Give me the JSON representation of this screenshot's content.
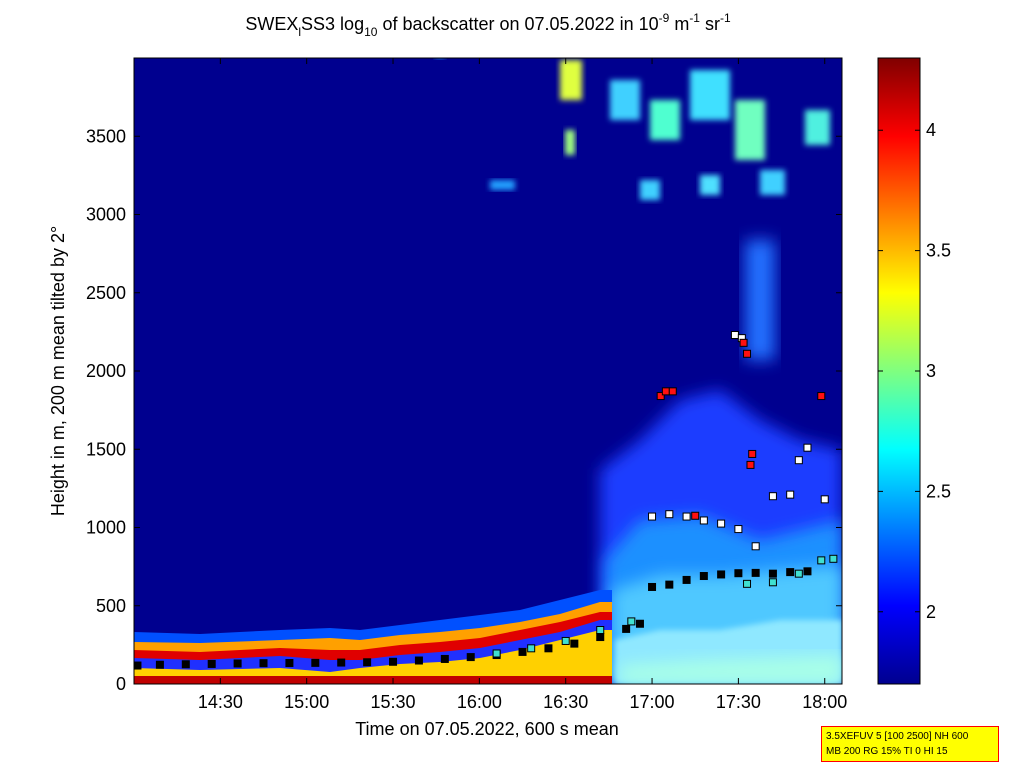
{
  "chart_data": {
    "type": "heatmap",
    "title": "SWEX_lSS3 log10 of backscatter on 07.05.2022 in 10^-9 m^-1 sr^-1",
    "title_parts": {
      "a": "SWEX",
      "a_sub": "l",
      "b": "SS3 log",
      "b_sub": "10",
      "c": " of backscatter on 07.05.2022 in 10",
      "c_sup": "-9",
      "d": " m",
      "d_sup": "-1",
      "e": " sr",
      "e_sup": "-1"
    },
    "xlabel": "Time on 07.05.2022, 600 s mean",
    "ylabel": "Height in m, 200 m mean tilted by 2°",
    "x_ticks": [
      "14:30",
      "15:00",
      "15:30",
      "16:00",
      "16:30",
      "17:00",
      "17:30",
      "18:00"
    ],
    "x_ticks_hours": [
      14.5,
      15.0,
      15.5,
      16.0,
      16.5,
      17.0,
      17.5,
      18.0
    ],
    "xlim_hours": [
      14.0,
      18.1
    ],
    "y_ticks": [
      0,
      500,
      1000,
      1500,
      2000,
      2500,
      3000,
      3500
    ],
    "ylim": [
      0,
      4000
    ],
    "colorbar": {
      "ticks": [
        2,
        2.5,
        3,
        3.5,
        4
      ],
      "tick_labels": [
        "2",
        "2.5",
        "3",
        "3.5",
        "4"
      ],
      "range": [
        1.7,
        4.3
      ],
      "colormap": "jet"
    },
    "series": [
      {
        "marker": "black-square",
        "points": [
          [
            14.02,
            118
          ],
          [
            14.15,
            123
          ],
          [
            14.3,
            126
          ],
          [
            14.45,
            128
          ],
          [
            14.6,
            131
          ],
          [
            14.75,
            133
          ],
          [
            14.9,
            134
          ],
          [
            15.05,
            135
          ],
          [
            15.2,
            137
          ],
          [
            15.35,
            139
          ],
          [
            15.5,
            142
          ],
          [
            15.65,
            150
          ],
          [
            15.8,
            160
          ],
          [
            15.95,
            172
          ],
          [
            16.1,
            185
          ],
          [
            16.25,
            205
          ],
          [
            16.4,
            228
          ],
          [
            16.55,
            258
          ],
          [
            16.7,
            300
          ],
          [
            16.85,
            352
          ],
          [
            16.93,
            385
          ],
          [
            17.0,
            620
          ],
          [
            17.1,
            635
          ],
          [
            17.2,
            665
          ],
          [
            17.3,
            690
          ],
          [
            17.4,
            700
          ],
          [
            17.5,
            708
          ],
          [
            17.6,
            710
          ],
          [
            17.7,
            705
          ],
          [
            17.8,
            715
          ],
          [
            17.9,
            720
          ]
        ]
      },
      {
        "marker": "white-square",
        "points": [
          [
            17.0,
            1070
          ],
          [
            17.1,
            1085
          ],
          [
            17.2,
            1070
          ],
          [
            17.3,
            1045
          ],
          [
            17.4,
            1025
          ],
          [
            17.5,
            990
          ],
          [
            17.6,
            880
          ],
          [
            17.7,
            1200
          ],
          [
            17.8,
            1210
          ],
          [
            17.85,
            1430
          ],
          [
            17.9,
            1510
          ],
          [
            18.0,
            1180
          ],
          [
            17.48,
            2230
          ],
          [
            17.52,
            2210
          ]
        ]
      },
      {
        "marker": "cyan-square",
        "points": [
          [
            16.1,
            195
          ],
          [
            16.3,
            228
          ],
          [
            16.5,
            275
          ],
          [
            16.7,
            345
          ],
          [
            16.88,
            400
          ],
          [
            17.55,
            640
          ],
          [
            17.7,
            650
          ],
          [
            17.85,
            705
          ],
          [
            17.98,
            790
          ],
          [
            18.05,
            800
          ]
        ]
      },
      {
        "marker": "red-square",
        "points": [
          [
            17.05,
            1840
          ],
          [
            17.08,
            1870
          ],
          [
            17.12,
            1870
          ],
          [
            17.53,
            2180
          ],
          [
            17.55,
            2110
          ],
          [
            17.58,
            1470
          ],
          [
            17.57,
            1400
          ],
          [
            17.98,
            1840
          ],
          [
            17.25,
            1075
          ]
        ]
      }
    ],
    "grid": false,
    "legend": "none"
  },
  "annotation_box": {
    "line1": "3.5XEFUV 5 [100 2500] NH 600",
    "line2": "MB 200 RG 15% TI 0 HI 15"
  }
}
